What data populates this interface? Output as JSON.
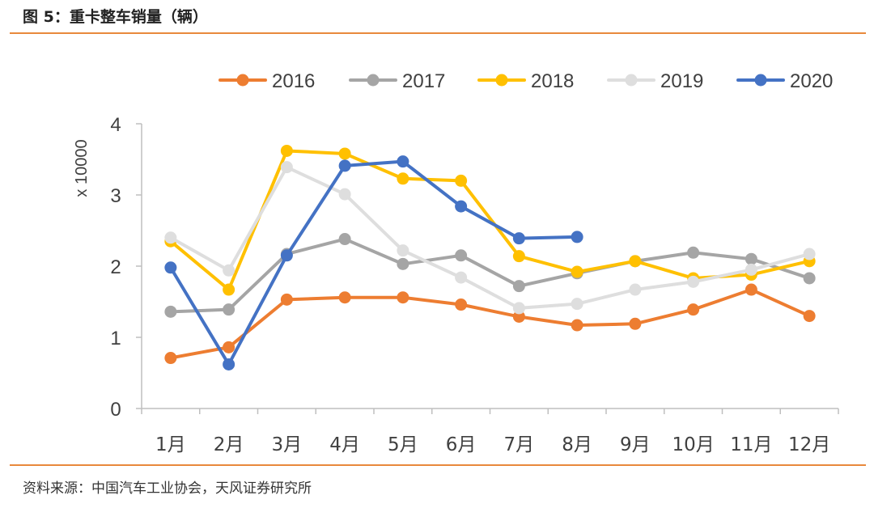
{
  "figure": {
    "title": "图 5：重卡整车销量（辆）",
    "source": "资料来源：中国汽车工业协会，天风证券研究所"
  },
  "colors": {
    "accent_rule": "#e8893c"
  },
  "chart_data": {
    "type": "line",
    "title": "",
    "xlabel": "",
    "ylabel": "x 10000",
    "ylim": [
      0,
      4
    ],
    "yticks": [
      "0",
      "1",
      "2",
      "3",
      "4"
    ],
    "categories": [
      "1月",
      "2月",
      "3月",
      "4月",
      "5月",
      "6月",
      "7月",
      "8月",
      "9月",
      "10月",
      "11月",
      "12月"
    ],
    "grid": false,
    "legend": "top",
    "series": [
      {
        "name": "2016",
        "color": "#ed7d31",
        "values": [
          0.71,
          0.86,
          1.53,
          1.56,
          1.56,
          1.46,
          1.29,
          1.17,
          1.19,
          1.39,
          1.67,
          1.3
        ]
      },
      {
        "name": "2017",
        "color": "#a5a5a5",
        "values": [
          1.36,
          1.39,
          2.17,
          2.38,
          2.03,
          2.15,
          1.72,
          1.9,
          2.07,
          2.19,
          2.1,
          1.83
        ]
      },
      {
        "name": "2018",
        "color": "#ffc000",
        "values": [
          2.35,
          1.67,
          3.62,
          3.58,
          3.23,
          3.2,
          2.14,
          1.92,
          2.07,
          1.83,
          1.88,
          2.07
        ]
      },
      {
        "name": "2019",
        "color": "#dedede",
        "values": [
          2.4,
          1.94,
          3.39,
          3.01,
          2.22,
          1.84,
          1.41,
          1.47,
          1.67,
          1.78,
          1.95,
          2.17
        ]
      },
      {
        "name": "2020",
        "color": "#4472c4",
        "values": [
          1.98,
          0.62,
          2.15,
          3.41,
          3.47,
          2.84,
          2.39,
          2.41,
          null,
          null,
          null,
          null
        ]
      }
    ]
  }
}
